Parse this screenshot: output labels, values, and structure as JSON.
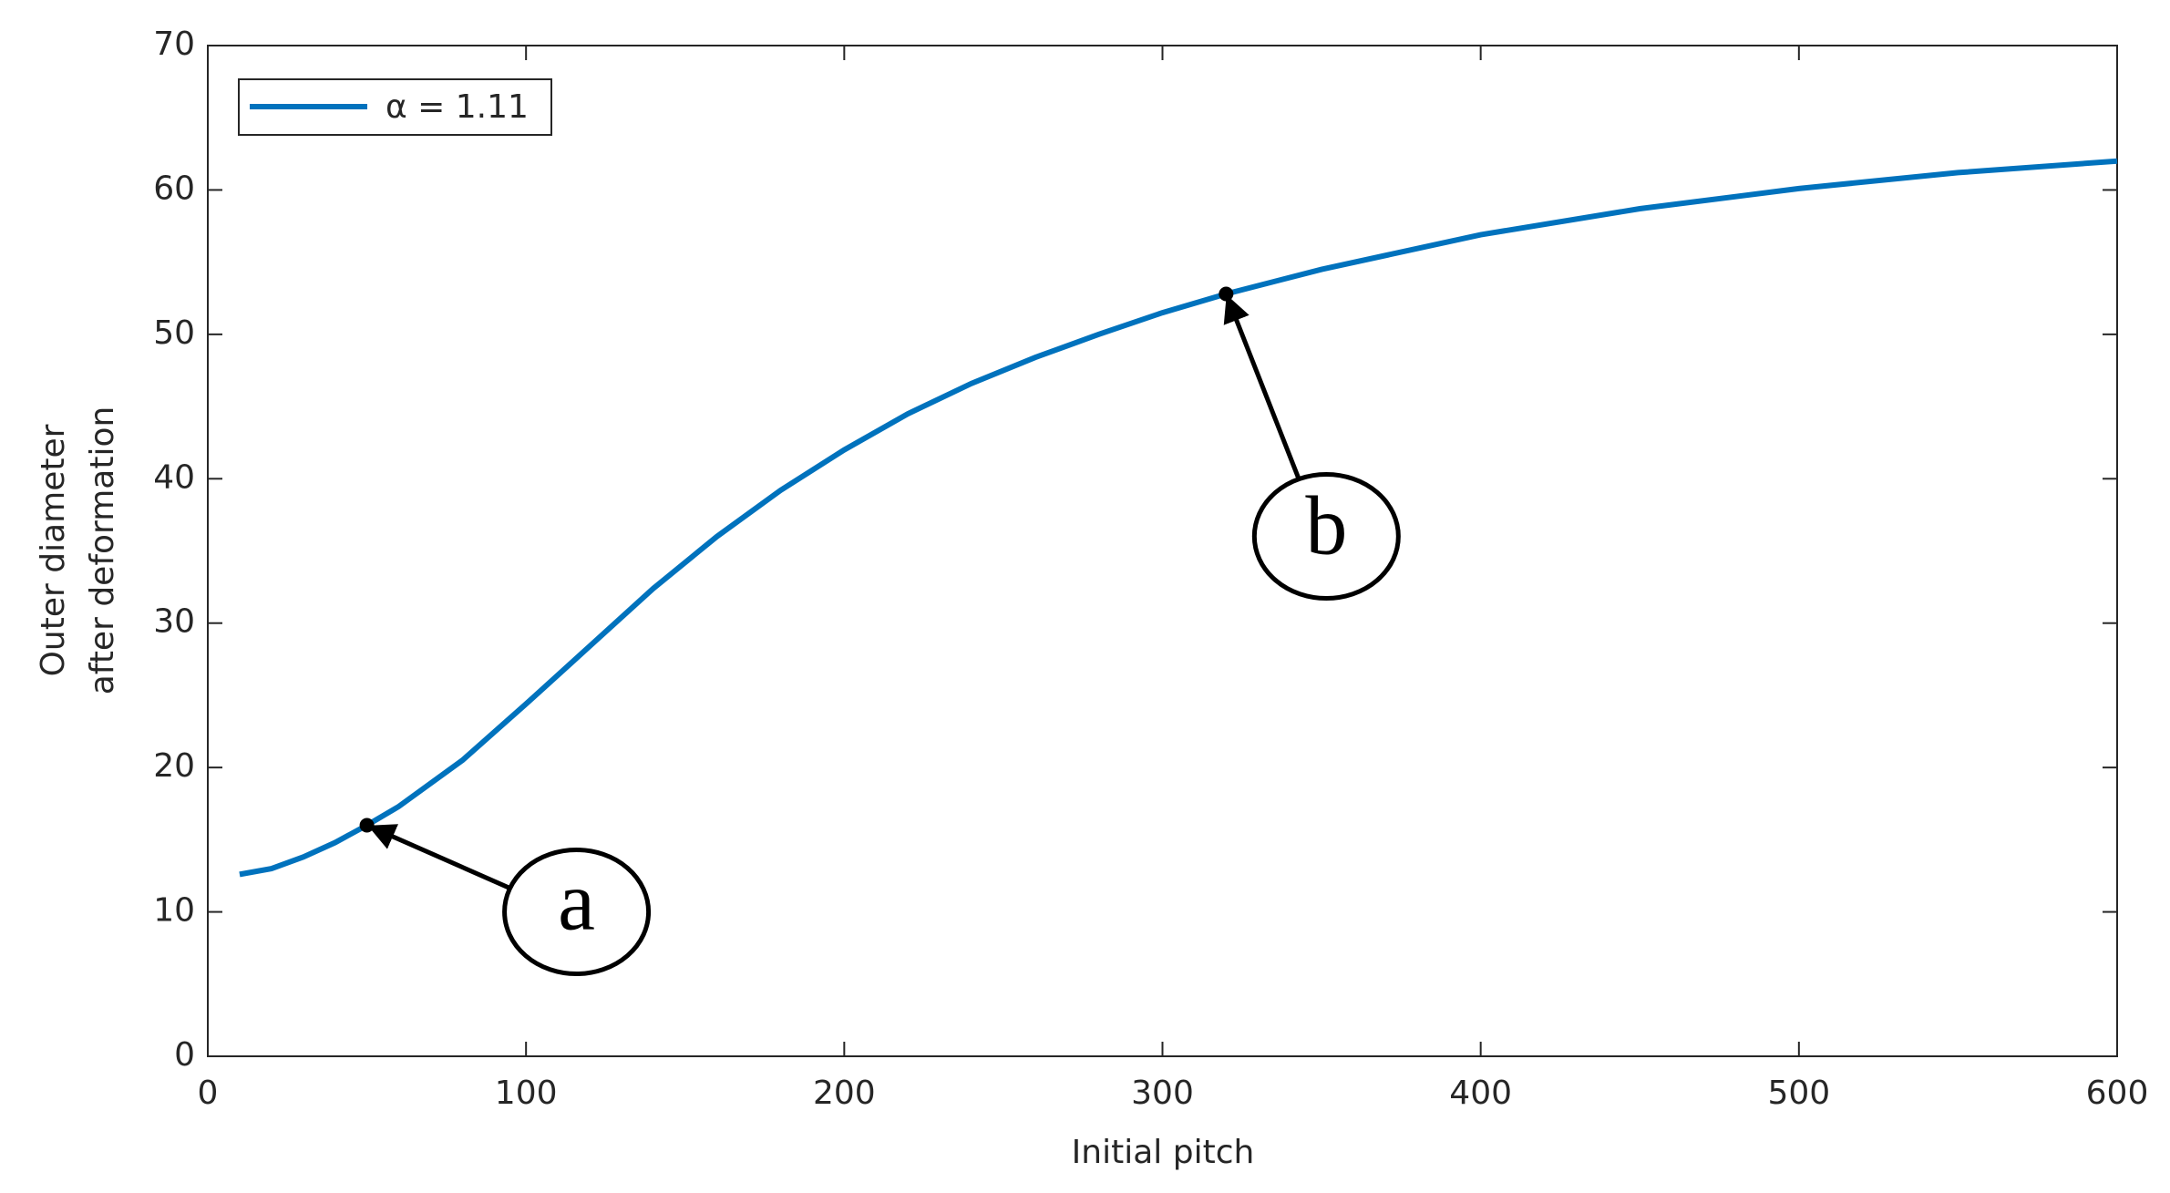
{
  "chart_data": {
    "type": "line",
    "x_label": "Initial pitch",
    "y_label": [
      "Outer diameter",
      "after deformation"
    ],
    "x": [
      10,
      20,
      30,
      40,
      50,
      60,
      80,
      100,
      120,
      140,
      160,
      180,
      200,
      220,
      240,
      260,
      280,
      300,
      320,
      350,
      400,
      450,
      500,
      550,
      600
    ],
    "series": [
      {
        "name": "α = 1.11",
        "color": "#0072bd",
        "values": [
          12.6,
          13.0,
          13.8,
          14.8,
          16.0,
          17.3,
          20.5,
          24.4,
          28.4,
          32.4,
          36.0,
          39.2,
          42.0,
          44.5,
          46.6,
          48.4,
          50.0,
          51.5,
          52.8,
          54.5,
          56.9,
          58.7,
          60.1,
          61.2,
          62.0
        ]
      }
    ],
    "points": [
      {
        "label": "a",
        "x": 50,
        "y": 16.0
      },
      {
        "label": "b",
        "x": 320,
        "y": 52.8
      }
    ],
    "xlim": [
      0,
      600
    ],
    "xticks": [
      0,
      100,
      200,
      300,
      400,
      500,
      600
    ],
    "ylim": [
      0,
      70
    ],
    "yticks": [
      0,
      10,
      20,
      30,
      40,
      50,
      60,
      70
    ],
    "legend": "upper left",
    "grid": false
  }
}
